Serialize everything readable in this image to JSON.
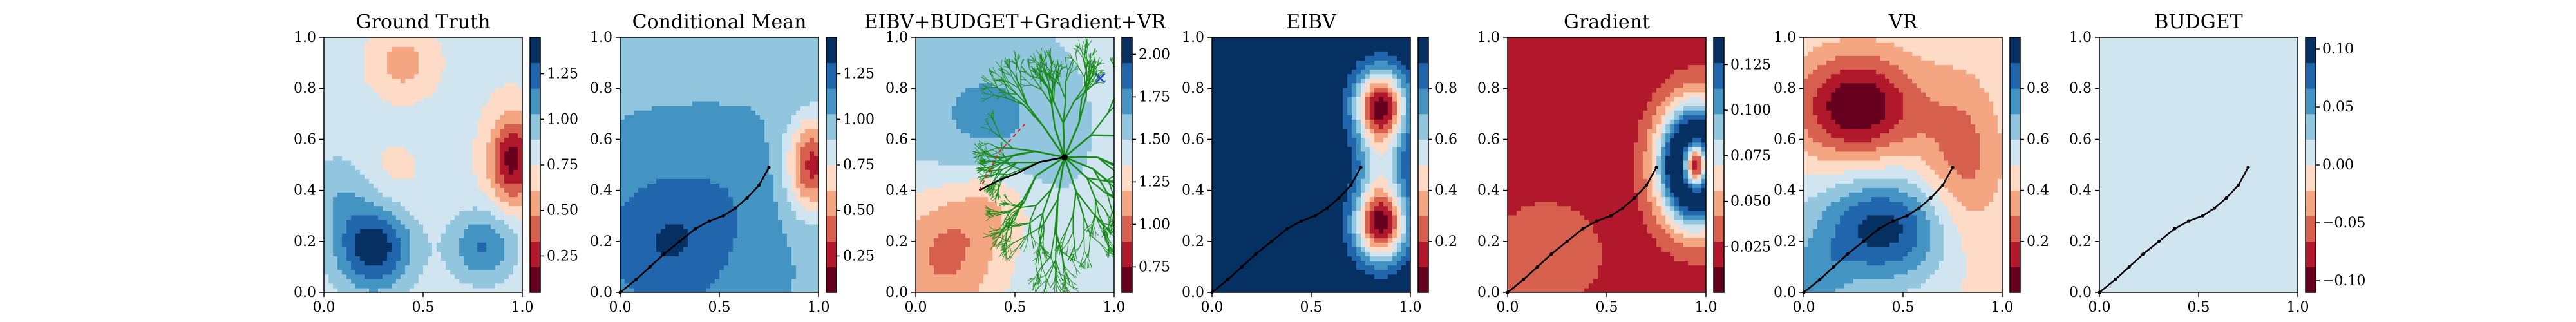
{
  "chart_data": [
    {
      "type": "heatmap",
      "title": "Ground Truth",
      "xlim": [
        0,
        1
      ],
      "ylim": [
        0,
        1
      ],
      "xticks": [
        "0.0",
        "0.5",
        "1.0"
      ],
      "yticks": [
        "0.0",
        "0.2",
        "0.4",
        "0.6",
        "0.8",
        "1.0"
      ],
      "colorbar": {
        "ticks": [
          "0.25",
          "0.50",
          "0.75",
          "1.00",
          "1.25"
        ],
        "range": [
          0.05,
          1.45
        ]
      },
      "colormap": "RdBu",
      "field": {
        "base": 0.78,
        "bumps": [
          {
            "x": 0.25,
            "y": 0.17,
            "amp": 0.62,
            "sx": 0.14,
            "sy": 0.12
          },
          {
            "x": 0.8,
            "y": 0.18,
            "amp": 0.4,
            "sx": 0.12,
            "sy": 0.1
          },
          {
            "x": 0.1,
            "y": 0.4,
            "amp": 0.22,
            "sx": 0.15,
            "sy": 0.12
          },
          {
            "x": 0.95,
            "y": 0.52,
            "amp": -0.65,
            "sx": 0.08,
            "sy": 0.12
          },
          {
            "x": 0.4,
            "y": 0.9,
            "amp": -0.25,
            "sx": 0.1,
            "sy": 0.08
          },
          {
            "x": 0.3,
            "y": 0.45,
            "amp": -0.12,
            "sx": 0.12,
            "sy": 0.1
          }
        ]
      }
    },
    {
      "type": "heatmap",
      "title": "Conditional Mean",
      "xlim": [
        0,
        1
      ],
      "ylim": [
        0,
        1
      ],
      "xticks": [
        "0.0",
        "0.5",
        "1.0"
      ],
      "yticks": [
        "0.0",
        "0.2",
        "0.4",
        "0.6",
        "0.8",
        "1.0"
      ],
      "colorbar": {
        "ticks": [
          "0.25",
          "0.50",
          "0.75",
          "1.00",
          "1.25"
        ],
        "range": [
          0.05,
          1.45
        ]
      },
      "colormap": "RdBu",
      "field": {
        "base": 1.02,
        "bumps": [
          {
            "x": 0.25,
            "y": 0.2,
            "amp": 0.3,
            "sx": 0.25,
            "sy": 0.2
          },
          {
            "x": 0.6,
            "y": 0.42,
            "amp": 0.06,
            "sx": 0.2,
            "sy": 0.15
          },
          {
            "x": 0.97,
            "y": 0.5,
            "amp": -0.75,
            "sx": 0.09,
            "sy": 0.13
          }
        ]
      },
      "path": [
        [
          0.0,
          0.0
        ],
        [
          0.08,
          0.05
        ],
        [
          0.15,
          0.1
        ],
        [
          0.22,
          0.15
        ],
        [
          0.3,
          0.2
        ],
        [
          0.38,
          0.25
        ],
        [
          0.45,
          0.28
        ],
        [
          0.52,
          0.3
        ],
        [
          0.58,
          0.33
        ],
        [
          0.64,
          0.37
        ],
        [
          0.7,
          0.42
        ],
        [
          0.75,
          0.49
        ]
      ]
    },
    {
      "type": "heatmap",
      "title": "EIBV+BUDGET+Gradient+VR",
      "xlim": [
        0,
        1
      ],
      "ylim": [
        0,
        1
      ],
      "xticks": [
        "0.0",
        "0.5",
        "1.0"
      ],
      "yticks": [
        "0.0",
        "0.2",
        "0.4",
        "0.6",
        "0.8",
        "1.0"
      ],
      "colorbar": {
        "ticks": [
          "0.75",
          "1.00",
          "1.25",
          "1.50",
          "1.75",
          "2.00"
        ],
        "range": [
          0.6,
          2.1
        ]
      },
      "colormap": "RdBu",
      "field": {
        "base": 1.45,
        "bumps": [
          {
            "x": 0.35,
            "y": 0.65,
            "amp": 0.25,
            "sx": 0.3,
            "sy": 0.25
          },
          {
            "x": 0.15,
            "y": 0.15,
            "amp": -0.45,
            "sx": 0.2,
            "sy": 0.2
          },
          {
            "x": 0.4,
            "y": 0.35,
            "amp": -0.25,
            "sx": 0.15,
            "sy": 0.12
          }
        ]
      },
      "tree_root": [
        0.75,
        0.53
      ],
      "tree_seed": 7,
      "selected_path": [
        [
          0.32,
          0.4
        ],
        [
          0.42,
          0.44
        ],
        [
          0.52,
          0.47
        ],
        [
          0.62,
          0.51
        ],
        [
          0.75,
          0.53
        ]
      ],
      "dashed_path": [
        [
          0.32,
          0.4
        ],
        [
          0.42,
          0.55
        ],
        [
          0.55,
          0.66
        ]
      ],
      "marker": [
        0.93,
        0.84
      ]
    },
    {
      "type": "heatmap",
      "title": "EIBV",
      "xlim": [
        0,
        1
      ],
      "ylim": [
        0,
        1
      ],
      "xticks": [
        "0.0",
        "0.5",
        "1.0"
      ],
      "yticks": [
        "0.0",
        "0.2",
        "0.4",
        "0.6",
        "0.8",
        "1.0"
      ],
      "colorbar": {
        "ticks": [
          "0.2",
          "0.4",
          "0.6",
          "0.8"
        ],
        "range": [
          0.0,
          1.0
        ]
      },
      "colormap": "RdBu",
      "field": {
        "base": 1.0,
        "bumps": [
          {
            "x": 0.85,
            "y": 0.73,
            "amp": -0.95,
            "sx": 0.09,
            "sy": 0.1
          },
          {
            "x": 0.85,
            "y": 0.27,
            "amp": -0.95,
            "sx": 0.09,
            "sy": 0.1
          },
          {
            "x": 0.85,
            "y": 0.5,
            "amp": -0.35,
            "sx": 0.08,
            "sy": 0.1
          }
        ]
      },
      "path": [
        [
          0.0,
          0.0
        ],
        [
          0.08,
          0.05
        ],
        [
          0.15,
          0.1
        ],
        [
          0.22,
          0.15
        ],
        [
          0.3,
          0.2
        ],
        [
          0.38,
          0.25
        ],
        [
          0.45,
          0.28
        ],
        [
          0.52,
          0.3
        ],
        [
          0.58,
          0.33
        ],
        [
          0.64,
          0.37
        ],
        [
          0.7,
          0.42
        ],
        [
          0.75,
          0.49
        ]
      ]
    },
    {
      "type": "heatmap",
      "title": "Gradient",
      "xlim": [
        0,
        1
      ],
      "ylim": [
        0,
        1
      ],
      "xticks": [
        "0.0",
        "0.5",
        "1.0"
      ],
      "yticks": [
        "0.0",
        "0.2",
        "0.4",
        "0.6",
        "0.8",
        "1.0"
      ],
      "colorbar": {
        "ticks": [
          "0.025",
          "0.050",
          "0.075",
          "0.100",
          "0.125"
        ],
        "range": [
          0.0,
          0.14
        ]
      },
      "colormap": "RdBu",
      "field": {
        "base": 0.02,
        "bumps": [
          {
            "x": 0.95,
            "y": 0.5,
            "amp": 0.23,
            "sx": 0.12,
            "sy": 0.15
          },
          {
            "x": 0.95,
            "y": 0.5,
            "amp": -0.23,
            "sx": 0.05,
            "sy": 0.07
          },
          {
            "x": 0.2,
            "y": 0.15,
            "amp": 0.02,
            "sx": 0.2,
            "sy": 0.15
          }
        ]
      },
      "path": [
        [
          0.0,
          0.0
        ],
        [
          0.08,
          0.05
        ],
        [
          0.15,
          0.1
        ],
        [
          0.22,
          0.15
        ],
        [
          0.3,
          0.2
        ],
        [
          0.38,
          0.25
        ],
        [
          0.45,
          0.28
        ],
        [
          0.52,
          0.3
        ],
        [
          0.58,
          0.33
        ],
        [
          0.64,
          0.37
        ],
        [
          0.7,
          0.42
        ],
        [
          0.75,
          0.49
        ]
      ]
    },
    {
      "type": "heatmap",
      "title": "VR",
      "xlim": [
        0,
        1
      ],
      "ylim": [
        0,
        1
      ],
      "xticks": [
        "0.0",
        "0.5",
        "1.0"
      ],
      "yticks": [
        "0.0",
        "0.2",
        "0.4",
        "0.6",
        "0.8",
        "1.0"
      ],
      "colorbar": {
        "ticks": [
          "0.2",
          "0.4",
          "0.6",
          "0.8"
        ],
        "range": [
          0.0,
          1.0
        ]
      },
      "colormap": "RdBu",
      "field": {
        "base": 0.5,
        "bumps": [
          {
            "x": 0.27,
            "y": 0.73,
            "amp": -0.5,
            "sx": 0.22,
            "sy": 0.15
          },
          {
            "x": 0.4,
            "y": 0.25,
            "amp": 0.45,
            "sx": 0.25,
            "sy": 0.15
          },
          {
            "x": 0.8,
            "y": 0.5,
            "amp": -0.25,
            "sx": 0.15,
            "sy": 0.25
          },
          {
            "x": 0.05,
            "y": 0.05,
            "amp": 0.2,
            "sx": 0.12,
            "sy": 0.1
          }
        ]
      },
      "path": [
        [
          0.0,
          0.0
        ],
        [
          0.08,
          0.05
        ],
        [
          0.15,
          0.1
        ],
        [
          0.22,
          0.15
        ],
        [
          0.3,
          0.2
        ],
        [
          0.38,
          0.25
        ],
        [
          0.45,
          0.28
        ],
        [
          0.52,
          0.3
        ],
        [
          0.58,
          0.33
        ],
        [
          0.64,
          0.37
        ],
        [
          0.7,
          0.42
        ],
        [
          0.75,
          0.49
        ]
      ]
    },
    {
      "type": "heatmap",
      "title": "BUDGET",
      "xlim": [
        0,
        1
      ],
      "ylim": [
        0,
        1
      ],
      "xticks": [
        "0.0",
        "0.5",
        "1.0"
      ],
      "yticks": [
        "0.0",
        "0.2",
        "0.4",
        "0.6",
        "0.8",
        "1.0"
      ],
      "colorbar": {
        "ticks": [
          "−0.10",
          "−0.05",
          "0.00",
          "0.05",
          "0.10"
        ],
        "range": [
          -0.11,
          0.11
        ]
      },
      "colormap": "RdBu",
      "field": {
        "base": 0.0,
        "bumps": []
      },
      "path": [
        [
          0.0,
          0.0
        ],
        [
          0.08,
          0.05
        ],
        [
          0.15,
          0.1
        ],
        [
          0.22,
          0.15
        ],
        [
          0.3,
          0.2
        ],
        [
          0.38,
          0.25
        ],
        [
          0.45,
          0.28
        ],
        [
          0.52,
          0.3
        ],
        [
          0.58,
          0.33
        ],
        [
          0.64,
          0.37
        ],
        [
          0.7,
          0.42
        ],
        [
          0.75,
          0.49
        ]
      ]
    }
  ]
}
